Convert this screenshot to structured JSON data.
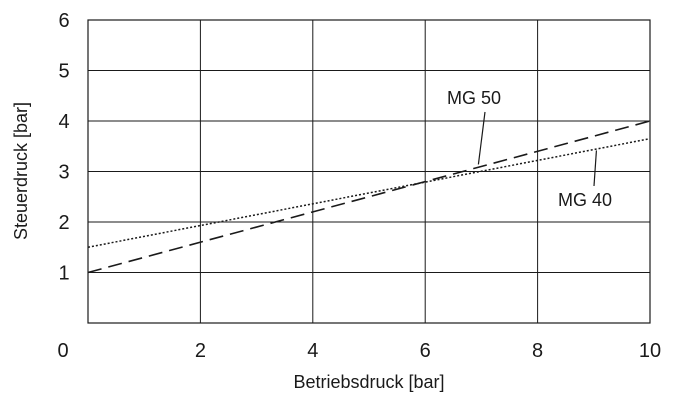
{
  "chart_data": {
    "type": "line",
    "title": "",
    "xlabel": "Betriebsdruck [bar]",
    "ylabel": "Steuerdruck [bar]",
    "xlim": [
      0,
      10
    ],
    "ylim": [
      0,
      6
    ],
    "x_ticks": [
      0,
      2,
      4,
      6,
      8,
      10
    ],
    "y_ticks": [
      1,
      2,
      3,
      4,
      5,
      6
    ],
    "x_tick_labels": [
      "0",
      "2",
      "4",
      "6",
      "8",
      "10"
    ],
    "y_tick_labels": [
      "1",
      "2",
      "3",
      "4",
      "5",
      "6"
    ],
    "grid": true,
    "series": [
      {
        "name": "MG 50",
        "style": "dashed",
        "x": [
          0,
          10
        ],
        "y": [
          1.0,
          4.0
        ]
      },
      {
        "name": "MG 40",
        "style": "dotted",
        "x": [
          0,
          10
        ],
        "y": [
          1.5,
          3.65
        ]
      }
    ],
    "annotations": [
      {
        "text": "MG 50",
        "series": 0,
        "at_x": 7.0
      },
      {
        "text": "MG 40",
        "series": 1,
        "at_x": 9.1
      }
    ],
    "colors": {
      "line": "#1a1a1a",
      "grid": "#1a1a1a",
      "background": "#ffffff"
    }
  }
}
